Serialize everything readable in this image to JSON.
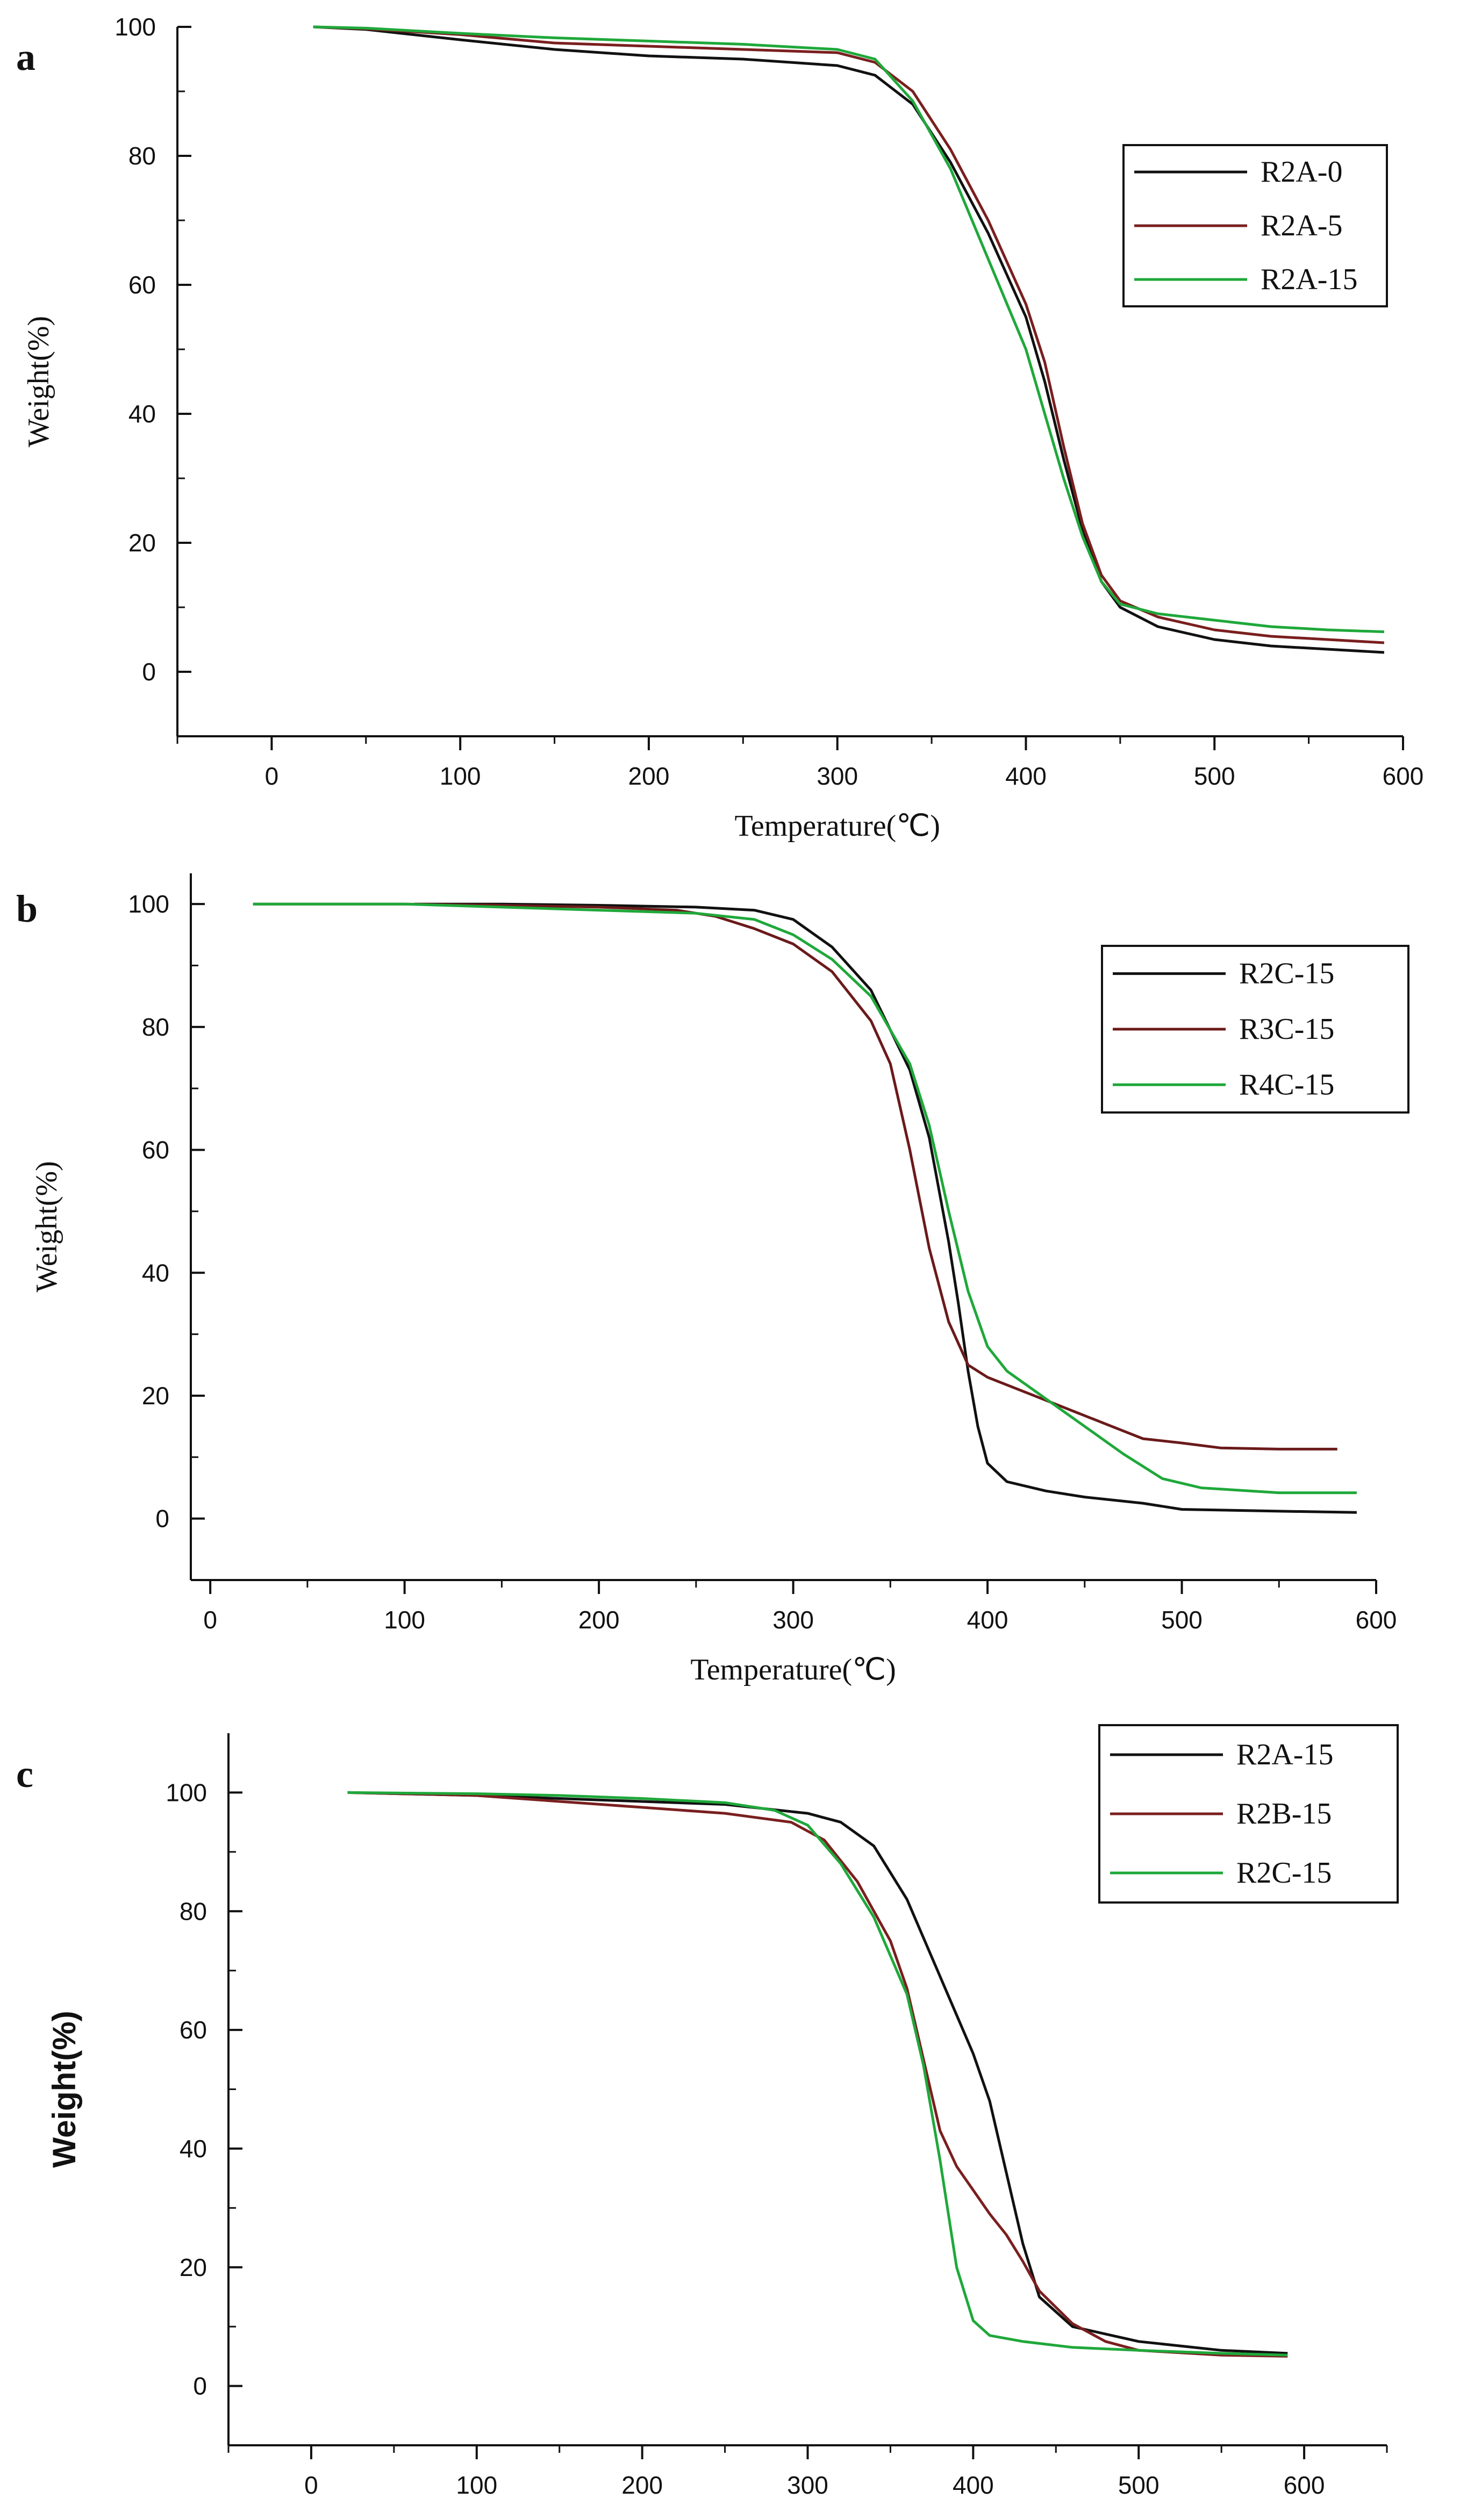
{
  "chart_data": [
    {
      "panel": "a",
      "type": "line",
      "title": "",
      "xlabel": "Temperature(℃)",
      "ylabel": "Weight(%)",
      "xlim": [
        -50,
        600
      ],
      "ylim": [
        -10,
        100
      ],
      "xticks": [
        0,
        100,
        200,
        300,
        400,
        500,
        600
      ],
      "yticks": [
        0,
        20,
        40,
        60,
        80,
        100
      ],
      "legend_position": "top-right",
      "series": [
        {
          "name": "R2A-0",
          "color": "#111111",
          "x": [
            22,
            50,
            100,
            150,
            200,
            250,
            300,
            320,
            340,
            360,
            380,
            400,
            410,
            420,
            430,
            440,
            450,
            470,
            500,
            530,
            560,
            590
          ],
          "y": [
            100,
            99.6,
            98,
            96.5,
            95.5,
            95,
            94,
            92.5,
            88,
            79,
            68,
            55,
            45,
            33,
            22,
            14,
            10,
            7,
            5,
            4,
            3.5,
            3
          ]
        },
        {
          "name": "R2A-5",
          "color": "#7a1f1f",
          "x": [
            22,
            50,
            100,
            150,
            200,
            250,
            300,
            320,
            340,
            360,
            380,
            400,
            410,
            420,
            430,
            440,
            450,
            470,
            500,
            530,
            560,
            590
          ],
          "y": [
            100,
            99.7,
            98.8,
            97.5,
            97,
            96.5,
            96,
            94.5,
            90,
            81,
            70,
            57,
            48,
            35,
            23,
            15,
            11,
            8.5,
            6.5,
            5.5,
            5,
            4.5
          ]
        },
        {
          "name": "R2A-15",
          "color": "#1fa83a",
          "x": [
            22,
            50,
            100,
            150,
            200,
            250,
            300,
            320,
            340,
            360,
            380,
            400,
            410,
            420,
            430,
            440,
            450,
            470,
            500,
            530,
            560,
            590
          ],
          "y": [
            100,
            99.8,
            99,
            98.3,
            97.8,
            97.3,
            96.5,
            95,
            88.5,
            78,
            64,
            50,
            40,
            30,
            21,
            14,
            10.5,
            9,
            8,
            7,
            6.5,
            6.2
          ]
        }
      ]
    },
    {
      "panel": "b",
      "type": "line",
      "title": "",
      "xlabel": "Temperature(℃)",
      "ylabel": "Weight(%)",
      "xlim": [
        -10,
        600
      ],
      "ylim": [
        -10,
        105
      ],
      "xticks": [
        0,
        100,
        200,
        300,
        400,
        500,
        600
      ],
      "yticks": [
        0,
        20,
        40,
        60,
        80,
        100
      ],
      "legend_position": "top-right",
      "series": [
        {
          "name": "R2C-15",
          "color": "#111111",
          "x": [
            105,
            150,
            200,
            250,
            280,
            300,
            320,
            340,
            360,
            370,
            380,
            385,
            390,
            395,
            400,
            410,
            430,
            450,
            480,
            500,
            550,
            590
          ],
          "y": [
            100,
            100,
            99.8,
            99.5,
            99,
            97.5,
            93,
            86,
            73,
            62,
            45,
            35,
            24,
            15,
            9,
            6,
            4.5,
            3.5,
            2.5,
            1.5,
            1.2,
            1
          ]
        },
        {
          "name": "R3C-15",
          "color": "#6b1a1a",
          "x": [
            22,
            100,
            150,
            200,
            240,
            260,
            280,
            300,
            320,
            340,
            350,
            360,
            370,
            380,
            390,
            400,
            420,
            440,
            460,
            480,
            500,
            520,
            550,
            580
          ],
          "y": [
            100,
            100,
            99.8,
            99.5,
            99,
            98,
            96,
            93.5,
            89,
            81,
            74,
            60,
            44,
            32,
            25,
            23,
            20.5,
            18,
            15.5,
            13,
            12.3,
            11.5,
            11.3,
            11.3
          ]
        },
        {
          "name": "R4C-15",
          "color": "#1fa83a",
          "x": [
            22,
            100,
            150,
            200,
            250,
            280,
            300,
            320,
            340,
            360,
            370,
            380,
            390,
            400,
            410,
            430,
            450,
            470,
            490,
            510,
            550,
            590
          ],
          "y": [
            100,
            100,
            99.5,
            99,
            98.5,
            97.5,
            95,
            91,
            85,
            74,
            64,
            50,
            37,
            28,
            24,
            19.5,
            15,
            10.5,
            6.5,
            5,
            4.2,
            4.2
          ]
        }
      ]
    },
    {
      "panel": "c",
      "type": "line",
      "title": "",
      "xlabel": "",
      "ylabel": "Weight(%)",
      "xlim": [
        -50,
        650
      ],
      "ylim": [
        -10,
        110
      ],
      "xticks": [
        0,
        100,
        200,
        300,
        400,
        500,
        600
      ],
      "yticks": [
        0,
        20,
        40,
        60,
        80,
        100
      ],
      "legend_position": "top-right",
      "series": [
        {
          "name": "R2A-15",
          "color": "#111111",
          "x": [
            22,
            100,
            150,
            200,
            250,
            300,
            320,
            340,
            360,
            380,
            400,
            410,
            420,
            430,
            440,
            460,
            500,
            550,
            590
          ],
          "y": [
            100,
            99.5,
            99,
            98.5,
            98,
            96.5,
            95,
            91,
            82,
            69,
            56,
            48,
            36,
            24,
            15,
            10,
            7.5,
            6,
            5.5
          ]
        },
        {
          "name": "R2B-15",
          "color": "#7a1f1f",
          "x": [
            22,
            100,
            150,
            200,
            250,
            290,
            310,
            330,
            350,
            360,
            370,
            380,
            390,
            400,
            410,
            420,
            430,
            440,
            460,
            480,
            500,
            550,
            590
          ],
          "y": [
            100,
            99.5,
            98.5,
            97.5,
            96.5,
            95,
            92,
            85,
            75,
            67,
            55,
            43,
            37,
            33,
            29,
            25.5,
            21,
            16,
            10.5,
            7.5,
            6,
            5.2,
            5
          ]
        },
        {
          "name": "R2C-15",
          "color": "#1fa83a",
          "x": [
            22,
            100,
            150,
            200,
            250,
            280,
            300,
            320,
            340,
            360,
            370,
            380,
            390,
            400,
            410,
            430,
            460,
            500,
            550,
            590
          ],
          "y": [
            100,
            99.8,
            99.5,
            99,
            98.3,
            97,
            94.5,
            88,
            79,
            66,
            54,
            38,
            20,
            11,
            8.5,
            7.5,
            6.5,
            6,
            5.5,
            5.2
          ]
        }
      ]
    }
  ]
}
